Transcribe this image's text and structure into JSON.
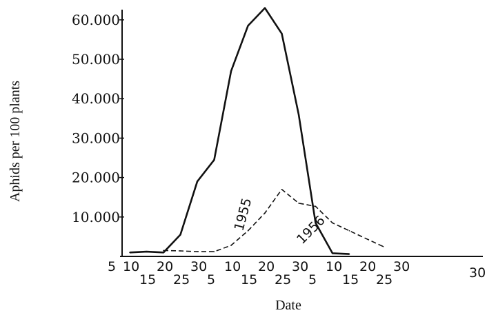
{
  "chart_data": {
    "type": "line",
    "xlabel": "Date",
    "ylabel": "Aphids per 100 plants",
    "ylim": [
      0,
      63000
    ],
    "y_ticks": [
      {
        "value": 10000,
        "label": "10.000"
      },
      {
        "value": 20000,
        "label": "20.000"
      },
      {
        "value": 30000,
        "label": "30.000"
      },
      {
        "value": 40000,
        "label": "40.000"
      },
      {
        "value": 50000,
        "label": "50.000"
      },
      {
        "value": 60000,
        "label": "60.000"
      }
    ],
    "x_ticks_upper": [
      "5",
      "10",
      "20",
      "30",
      "10",
      "20",
      "30",
      "10",
      "20",
      "30"
    ],
    "x_ticks_lower": [
      "15",
      "25",
      "5",
      "15",
      "25",
      "5",
      "15",
      "25"
    ],
    "series": [
      {
        "name": "1955",
        "style": "solid",
        "x": [
          "10",
          "15",
          "20",
          "30",
          "5",
          "10",
          "15",
          "20",
          "25",
          "30",
          "5",
          "10",
          "15",
          "20"
        ],
        "values": [
          1000,
          1200,
          1000,
          5500,
          19000,
          24500,
          47000,
          58500,
          63000,
          56500,
          36000,
          8500,
          800,
          600
        ]
      },
      {
        "name": "1956",
        "style": "dashed",
        "x": [
          "20",
          "25",
          "30",
          "5",
          "10",
          "15",
          "20",
          "25",
          "30",
          "5",
          "10",
          "15",
          "20",
          "25"
        ],
        "values": [
          1500,
          1400,
          1200,
          1200,
          2800,
          6500,
          11000,
          17000,
          13500,
          12700,
          8500,
          6500,
          4500,
          2500
        ]
      }
    ]
  }
}
